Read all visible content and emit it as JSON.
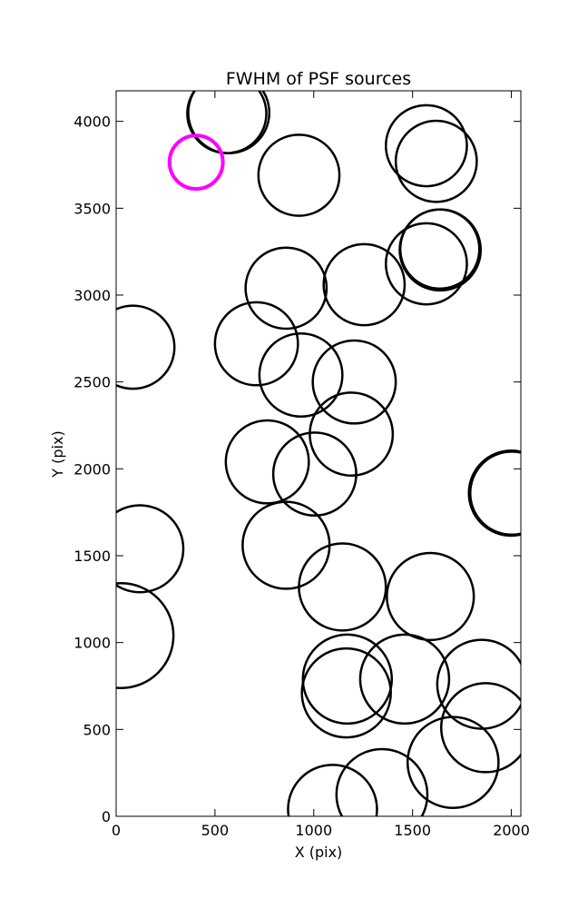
{
  "chart_data": {
    "type": "scatter",
    "marker": "open-circle",
    "title": "FWHM of PSF sources",
    "xlabel": "X (pix)",
    "ylabel": "Y (pix)",
    "xlim": [
      0,
      2048
    ],
    "ylim": [
      0,
      4176
    ],
    "grid": false,
    "xticks": [
      0,
      500,
      1000,
      1500,
      2000
    ],
    "yticks": [
      0,
      500,
      1000,
      1500,
      2000,
      2500,
      3000,
      3500,
      4000
    ],
    "colors": {
      "normal": "#000000",
      "highlight": "#ff00ff"
    },
    "sources": [
      {
        "x": 570,
        "y": 4050,
        "r": 205
      },
      {
        "x": 560,
        "y": 4045,
        "r": 200
      },
      {
        "x": 925,
        "y": 3690,
        "r": 205
      },
      {
        "x": 405,
        "y": 3765,
        "r": 135,
        "highlight": true
      },
      {
        "x": 1570,
        "y": 3860,
        "r": 205
      },
      {
        "x": 1620,
        "y": 3770,
        "r": 205
      },
      {
        "x": 1570,
        "y": 3180,
        "r": 205
      },
      {
        "x": 1640,
        "y": 3260,
        "r": 205
      },
      {
        "x": 1638,
        "y": 3265,
        "r": 200
      },
      {
        "x": 860,
        "y": 3040,
        "r": 205
      },
      {
        "x": 1255,
        "y": 3060,
        "r": 205
      },
      {
        "x": 85,
        "y": 2700,
        "r": 210
      },
      {
        "x": 710,
        "y": 2720,
        "r": 210
      },
      {
        "x": 935,
        "y": 2540,
        "r": 210
      },
      {
        "x": 1205,
        "y": 2500,
        "r": 210
      },
      {
        "x": 1190,
        "y": 2200,
        "r": 210
      },
      {
        "x": 765,
        "y": 2040,
        "r": 210
      },
      {
        "x": 1005,
        "y": 1970,
        "r": 210
      },
      {
        "x": 2000,
        "y": 1860,
        "r": 215
      },
      {
        "x": 2002,
        "y": 1860,
        "r": 210
      },
      {
        "x": 120,
        "y": 1540,
        "r": 220
      },
      {
        "x": 860,
        "y": 1560,
        "r": 220
      },
      {
        "x": 1145,
        "y": 1320,
        "r": 220
      },
      {
        "x": 1590,
        "y": 1265,
        "r": 220
      },
      {
        "x": 25,
        "y": 1040,
        "r": 265
      },
      {
        "x": 1170,
        "y": 790,
        "r": 225
      },
      {
        "x": 1165,
        "y": 710,
        "r": 225
      },
      {
        "x": 1460,
        "y": 790,
        "r": 225
      },
      {
        "x": 1850,
        "y": 760,
        "r": 225
      },
      {
        "x": 1870,
        "y": 510,
        "r": 225
      },
      {
        "x": 1705,
        "y": 310,
        "r": 230
      },
      {
        "x": 1345,
        "y": 125,
        "r": 230
      },
      {
        "x": 1095,
        "y": 40,
        "r": 225
      }
    ]
  }
}
